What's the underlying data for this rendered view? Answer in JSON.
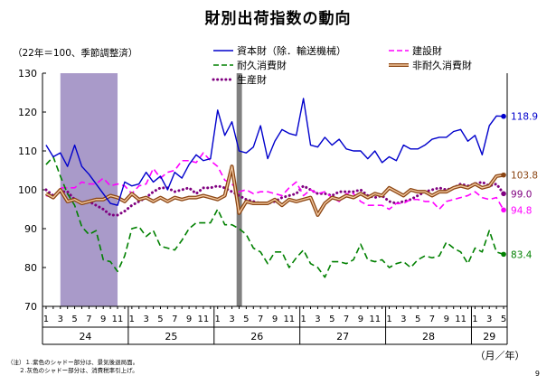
{
  "title": "財別出荷指数の動向",
  "unit_label": "（22年＝100、季節調整済）",
  "axis_unit": "（月／年）",
  "page_number": "9",
  "notes": [
    "（注）１.紫色のシャドー部分は、景気後退局面。",
    "　　２.灰色のシャドー部分は、消費税率引上げ。"
  ],
  "chart_data": {
    "type": "line",
    "ylim": [
      70,
      130
    ],
    "yticks": [
      70,
      80,
      90,
      100,
      110,
      120,
      130
    ],
    "x_month_ticks": [
      "1",
      "3",
      "5",
      "7",
      "9",
      "11"
    ],
    "x_month_ticks_last": [
      "1",
      "3",
      "5"
    ],
    "years": [
      "24",
      "25",
      "26",
      "27",
      "28",
      "29"
    ],
    "x_count": 65,
    "x_start": "24年1月",
    "x_end": "29年5月",
    "grid": false,
    "legend_position": "top",
    "shading": [
      {
        "label": "景気後退局面",
        "from_index": 2,
        "to_index": 10,
        "color": "#a99ac9"
      },
      {
        "label": "消費税率引上げ",
        "from_index": 27,
        "to_index": 27,
        "color": "#808080"
      }
    ],
    "series": [
      {
        "name": "資本財（除．輸送機械）",
        "color": "#0000cc",
        "style": "solid",
        "end_label": "118.9",
        "values": [
          111.5,
          108.5,
          109.5,
          106.0,
          111.5,
          106.0,
          104.0,
          101.5,
          99.0,
          96.5,
          96.0,
          102.0,
          101.0,
          101.5,
          104.5,
          102.0,
          103.5,
          100.0,
          104.5,
          103.0,
          106.5,
          109.0,
          107.5,
          108.0,
          120.5,
          114.0,
          117.5,
          110.0,
          109.5,
          111.0,
          116.5,
          108.0,
          112.5,
          115.5,
          114.5,
          114.0,
          123.5,
          111.5,
          111.0,
          113.5,
          111.5,
          113.0,
          110.5,
          110.0,
          110.0,
          108.0,
          110.0,
          107.0,
          108.5,
          107.5,
          111.5,
          110.5,
          110.5,
          111.5,
          113.0,
          113.5,
          113.5,
          115.0,
          115.5,
          112.5,
          114.0,
          109.0,
          116.5,
          119.0,
          118.9
        ]
      },
      {
        "name": "建設財",
        "color": "#ff00ff",
        "style": "dashed",
        "end_label": "94.8",
        "values": [
          98.5,
          98.0,
          100.5,
          100.5,
          100.5,
          102.0,
          101.5,
          101.5,
          103.0,
          101.0,
          101.5,
          101.0,
          99.0,
          101.0,
          101.5,
          105.5,
          103.0,
          104.5,
          105.0,
          107.5,
          107.5,
          107.0,
          109.5,
          107.5,
          106.0,
          102.5,
          101.5,
          99.5,
          100.0,
          99.0,
          99.5,
          99.5,
          99.0,
          98.5,
          100.5,
          102.0,
          98.5,
          100.0,
          99.0,
          99.5,
          98.0,
          97.0,
          99.0,
          99.0,
          97.0,
          96.0,
          96.0,
          96.0,
          95.0,
          96.5,
          96.5,
          97.5,
          97.5,
          97.0,
          97.0,
          95.0,
          97.0,
          97.5,
          98.0,
          98.5,
          99.5,
          98.0,
          97.5,
          98.0,
          94.8
        ]
      },
      {
        "name": "耐久消費財",
        "color": "#008000",
        "style": "dashed",
        "end_label": "83.4",
        "values": [
          106.5,
          108.5,
          103.5,
          99.0,
          96.0,
          90.5,
          88.5,
          89.5,
          82.0,
          81.5,
          79.0,
          83.0,
          90.0,
          90.5,
          88.0,
          89.5,
          85.5,
          85.0,
          84.5,
          87.0,
          90.0,
          91.5,
          91.5,
          91.5,
          95.0,
          91.0,
          91.0,
          90.0,
          88.5,
          85.0,
          84.0,
          81.0,
          84.0,
          84.0,
          80.0,
          82.5,
          84.5,
          81.0,
          80.0,
          77.5,
          81.5,
          81.5,
          81.0,
          82.0,
          86.0,
          82.0,
          81.5,
          82.0,
          80.0,
          81.0,
          81.5,
          80.0,
          82.0,
          83.0,
          82.5,
          83.0,
          86.5,
          85.0,
          84.0,
          81.0,
          85.0,
          84.0,
          89.5,
          84.0,
          83.4
        ]
      },
      {
        "name": "非耐久消費財",
        "color": "#8b4513",
        "style": "double",
        "end_label": "103.8",
        "values": [
          99.0,
          98.0,
          100.0,
          97.0,
          97.5,
          96.5,
          97.0,
          97.5,
          97.5,
          98.5,
          98.0,
          97.0,
          99.0,
          97.5,
          98.0,
          97.0,
          98.0,
          97.0,
          98.0,
          97.5,
          98.0,
          98.0,
          98.5,
          98.0,
          97.5,
          98.5,
          106.0,
          94.0,
          97.0,
          96.5,
          96.5,
          96.5,
          97.5,
          96.0,
          97.5,
          97.0,
          97.5,
          98.0,
          93.5,
          96.5,
          98.0,
          97.5,
          98.5,
          98.0,
          99.0,
          98.0,
          99.0,
          98.5,
          100.5,
          99.5,
          98.5,
          100.0,
          99.5,
          99.5,
          98.5,
          99.5,
          99.5,
          100.5,
          101.0,
          100.5,
          101.5,
          100.5,
          101.0,
          103.5,
          103.8
        ]
      },
      {
        "name": "生産財",
        "color": "#800080",
        "style": "dotted",
        "end_label": "99.0",
        "values": [
          100.0,
          98.5,
          99.5,
          99.5,
          97.5,
          96.5,
          97.0,
          96.0,
          95.0,
          93.5,
          93.5,
          94.5,
          96.0,
          97.0,
          98.0,
          99.5,
          100.5,
          100.5,
          99.5,
          100.0,
          100.5,
          99.0,
          100.5,
          100.5,
          101.0,
          100.5,
          99.5,
          98.5,
          97.5,
          97.0,
          96.5,
          96.5,
          97.0,
          98.0,
          98.5,
          99.0,
          101.0,
          100.0,
          99.0,
          99.0,
          98.5,
          99.5,
          99.5,
          99.5,
          100.0,
          98.5,
          98.0,
          98.5,
          97.0,
          96.5,
          97.0,
          97.5,
          98.5,
          99.5,
          100.0,
          100.5,
          100.0,
          100.5,
          101.5,
          101.0,
          101.5,
          102.0,
          101.0,
          101.5,
          99.0
        ]
      }
    ]
  }
}
